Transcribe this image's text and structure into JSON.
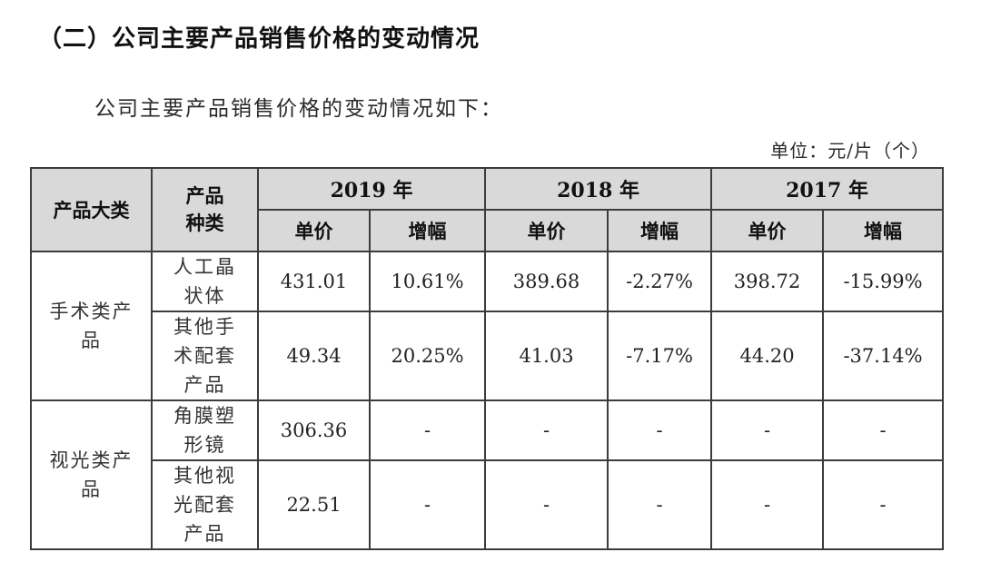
{
  "heading": "（二）公司主要产品销售价格的变动情况",
  "intro": "公司主要产品销售价格的变动情况如下：",
  "unit": "单位：元/片（个）",
  "table": {
    "header": {
      "category": "产品大类",
      "type": "产品种类",
      "years": [
        "2019 年",
        "2018 年",
        "2017 年"
      ],
      "unit_price": "单价",
      "growth": "增幅"
    },
    "groups": [
      {
        "category": "手术类产品",
        "rows": [
          {
            "type": "人工晶状体",
            "y2019_price": "431.01",
            "y2019_growth": "10.61%",
            "y2018_price": "389.68",
            "y2018_growth": "-2.27%",
            "y2017_price": "398.72",
            "y2017_growth": "-15.99%"
          },
          {
            "type": "其他手术配套产品",
            "y2019_price": "49.34",
            "y2019_growth": "20.25%",
            "y2018_price": "41.03",
            "y2018_growth": "-7.17%",
            "y2017_price": "44.20",
            "y2017_growth": "-37.14%"
          }
        ]
      },
      {
        "category": "视光类产品",
        "rows": [
          {
            "type": "角膜塑形镜",
            "y2019_price": "306.36",
            "y2019_growth": "-",
            "y2018_price": "-",
            "y2018_growth": "-",
            "y2017_price": "-",
            "y2017_growth": "-"
          },
          {
            "type": "其他视光配套产品",
            "y2019_price": "22.51",
            "y2019_growth": "-",
            "y2018_price": "-",
            "y2018_growth": "-",
            "y2017_price": "-",
            "y2017_growth": "-"
          }
        ]
      }
    ]
  }
}
